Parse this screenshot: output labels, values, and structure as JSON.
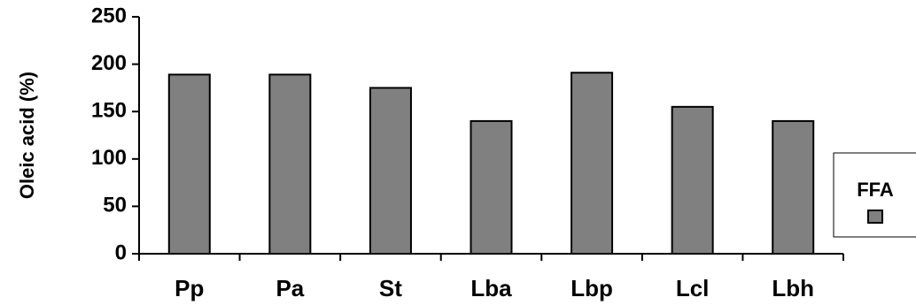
{
  "chart_data": {
    "type": "bar",
    "title": "",
    "xlabel": "",
    "ylabel": "Oleic acid (%)",
    "ylim": [
      0,
      250
    ],
    "yticks": [
      0,
      50,
      100,
      150,
      200,
      250
    ],
    "categories": [
      "Pp",
      "Pa",
      "St",
      "Lba",
      "Lbp",
      "Lcl",
      "Lbh"
    ],
    "series": [
      {
        "name": "FFA",
        "values": [
          189,
          189,
          175,
          140,
          191,
          155,
          140
        ],
        "color": "#808080"
      }
    ],
    "grid": false,
    "legend_position": "right"
  }
}
